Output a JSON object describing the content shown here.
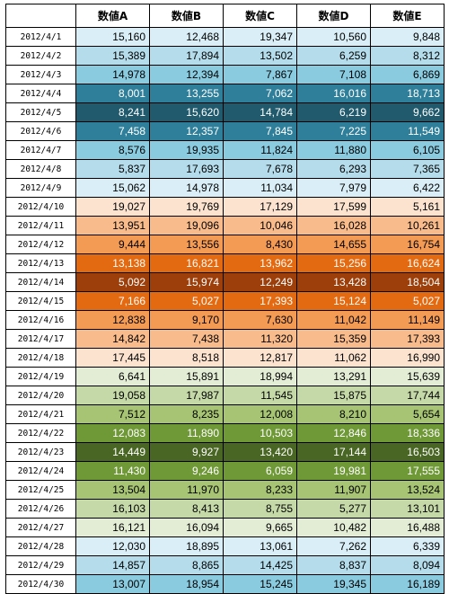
{
  "headers": [
    "",
    "数値A",
    "数値B",
    "数値C",
    "数値D",
    "数値E"
  ],
  "fills": {
    "b1": "#d9eef6",
    "b2": "#b5dceb",
    "b3": "#8acbe0",
    "b4": "#2f7f9a",
    "b5": "#215a6c",
    "o1": "#fce3d0",
    "o2": "#f8bb8b",
    "o3": "#f39b55",
    "o4": "#e46a12",
    "o5": "#9c3f0a",
    "g1": "#e3edd5",
    "g2": "#c5d9a8",
    "g3": "#a7c474",
    "g4": "#6f9837",
    "g5": "#4a6625"
  },
  "text_colors": {
    "light": "#000000",
    "dark": "#ffffff"
  },
  "rows": [
    {
      "date": "2012/4/1",
      "values": [
        "15,160",
        "12,468",
        "19,347",
        "10,560",
        "9,848"
      ],
      "shade": "b1"
    },
    {
      "date": "2012/4/2",
      "values": [
        "15,389",
        "17,894",
        "13,502",
        "6,259",
        "8,312"
      ],
      "shade": "b2"
    },
    {
      "date": "2012/4/3",
      "values": [
        "14,978",
        "12,394",
        "7,867",
        "7,108",
        "6,869"
      ],
      "shade": "b3"
    },
    {
      "date": "2012/4/4",
      "values": [
        "8,001",
        "13,255",
        "7,062",
        "16,016",
        "18,713"
      ],
      "shade": "b4"
    },
    {
      "date": "2012/4/5",
      "values": [
        "8,241",
        "15,620",
        "14,784",
        "6,219",
        "9,662"
      ],
      "shade": "b5"
    },
    {
      "date": "2012/4/6",
      "values": [
        "7,458",
        "12,357",
        "7,845",
        "7,225",
        "11,549"
      ],
      "shade": "b4"
    },
    {
      "date": "2012/4/7",
      "values": [
        "8,576",
        "19,935",
        "11,824",
        "11,880",
        "6,105"
      ],
      "shade": "b3"
    },
    {
      "date": "2012/4/8",
      "values": [
        "5,837",
        "17,693",
        "7,678",
        "6,293",
        "7,365"
      ],
      "shade": "b2"
    },
    {
      "date": "2012/4/9",
      "values": [
        "15,062",
        "14,978",
        "11,034",
        "7,979",
        "6,422"
      ],
      "shade": "b1"
    },
    {
      "date": "2012/4/10",
      "values": [
        "19,027",
        "19,769",
        "17,129",
        "17,599",
        "5,161"
      ],
      "shade": "o1"
    },
    {
      "date": "2012/4/11",
      "values": [
        "13,951",
        "19,096",
        "10,046",
        "16,028",
        "10,261"
      ],
      "shade": "o2"
    },
    {
      "date": "2012/4/12",
      "values": [
        "9,444",
        "13,556",
        "8,430",
        "14,655",
        "16,754"
      ],
      "shade": "o3"
    },
    {
      "date": "2012/4/13",
      "values": [
        "13,138",
        "16,821",
        "13,962",
        "15,256",
        "16,624"
      ],
      "shade": "o4"
    },
    {
      "date": "2012/4/14",
      "values": [
        "5,092",
        "15,974",
        "12,249",
        "13,428",
        "18,504"
      ],
      "shade": "o5"
    },
    {
      "date": "2012/4/15",
      "values": [
        "7,166",
        "5,027",
        "17,393",
        "15,124",
        "5,027"
      ],
      "shade": "o4"
    },
    {
      "date": "2012/4/16",
      "values": [
        "12,838",
        "9,170",
        "7,630",
        "11,042",
        "11,149"
      ],
      "shade": "o3"
    },
    {
      "date": "2012/4/17",
      "values": [
        "14,842",
        "7,438",
        "11,320",
        "15,359",
        "17,393"
      ],
      "shade": "o2"
    },
    {
      "date": "2012/4/18",
      "values": [
        "17,445",
        "8,518",
        "12,817",
        "11,062",
        "16,990"
      ],
      "shade": "o1"
    },
    {
      "date": "2012/4/19",
      "values": [
        "6,641",
        "15,891",
        "18,994",
        "13,291",
        "15,639"
      ],
      "shade": "g1"
    },
    {
      "date": "2012/4/20",
      "values": [
        "19,058",
        "17,987",
        "11,545",
        "15,875",
        "17,744"
      ],
      "shade": "g2"
    },
    {
      "date": "2012/4/21",
      "values": [
        "7,512",
        "8,235",
        "12,008",
        "8,210",
        "5,654"
      ],
      "shade": "g3"
    },
    {
      "date": "2012/4/22",
      "values": [
        "12,083",
        "11,890",
        "10,503",
        "12,846",
        "18,336"
      ],
      "shade": "g4"
    },
    {
      "date": "2012/4/23",
      "values": [
        "14,449",
        "9,927",
        "13,420",
        "17,144",
        "16,503"
      ],
      "shade": "g5"
    },
    {
      "date": "2012/4/24",
      "values": [
        "11,430",
        "9,246",
        "6,059",
        "19,981",
        "17,555"
      ],
      "shade": "g4"
    },
    {
      "date": "2012/4/25",
      "values": [
        "13,504",
        "11,970",
        "8,233",
        "11,907",
        "13,524"
      ],
      "shade": "g3"
    },
    {
      "date": "2012/4/26",
      "values": [
        "16,103",
        "8,413",
        "8,755",
        "5,277",
        "13,101"
      ],
      "shade": "g2"
    },
    {
      "date": "2012/4/27",
      "values": [
        "16,121",
        "16,094",
        "9,665",
        "10,482",
        "16,488"
      ],
      "shade": "g1"
    },
    {
      "date": "2012/4/28",
      "values": [
        "12,030",
        "18,895",
        "13,061",
        "7,262",
        "6,339"
      ],
      "shade": "b1"
    },
    {
      "date": "2012/4/29",
      "values": [
        "14,857",
        "8,865",
        "14,425",
        "8,837",
        "8,094"
      ],
      "shade": "b2"
    },
    {
      "date": "2012/4/30",
      "values": [
        "13,007",
        "18,954",
        "15,245",
        "19,345",
        "16,189"
      ],
      "shade": "b3"
    }
  ]
}
